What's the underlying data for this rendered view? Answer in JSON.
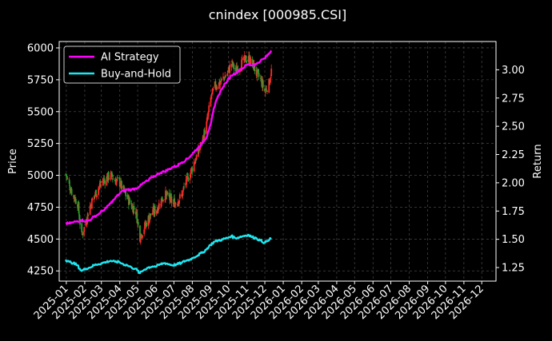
{
  "chart_data": {
    "type": "line",
    "title": "cnindex [000985.CSI]",
    "xlabel": "",
    "ylabel": "Price",
    "y2label": "Return",
    "background": "#000000",
    "grid": true,
    "legend_position": "top-left",
    "x_ticks": [
      "2025-01",
      "2025-02",
      "2025-03",
      "2025-04",
      "2025-05",
      "2025-06",
      "2025-07",
      "2025-08",
      "2025-09",
      "2025-10",
      "2025-11",
      "2025-12",
      "2026-01",
      "2026-02",
      "2026-03",
      "2026-04",
      "2026-05",
      "2026-06",
      "2026-07",
      "2026-08",
      "2026-09",
      "2026-10",
      "2026-11",
      "2026-12"
    ],
    "y_left": {
      "ticks": [
        4250,
        4500,
        4750,
        5000,
        5250,
        5500,
        5750,
        6000
      ],
      "lim": [
        4170,
        6050
      ]
    },
    "y_right": {
      "ticks": [
        1.25,
        1.5,
        1.75,
        2.0,
        2.25,
        2.5,
        2.75,
        3.0
      ],
      "lim": [
        1.13,
        3.25
      ]
    },
    "x_range": [
      "2024-12-20",
      "2026-12-25"
    ],
    "candle_colors": {
      "up": "#ff2a2a",
      "down": "#2e9e2e"
    },
    "price_path": [
      [
        "2024-12-31",
        5010
      ],
      [
        "2025-01-06",
        4920
      ],
      [
        "2025-01-13",
        4840
      ],
      [
        "2025-01-20",
        4780
      ],
      [
        "2025-01-27",
        4520
      ],
      [
        "2025-02-03",
        4640
      ],
      [
        "2025-02-10",
        4760
      ],
      [
        "2025-02-17",
        4840
      ],
      [
        "2025-02-24",
        4900
      ],
      [
        "2025-03-03",
        4950
      ],
      [
        "2025-03-10",
        4980
      ],
      [
        "2025-03-17",
        5000
      ],
      [
        "2025-03-24",
        4960
      ],
      [
        "2025-03-31",
        4950
      ],
      [
        "2025-04-07",
        4880
      ],
      [
        "2025-04-14",
        4820
      ],
      [
        "2025-04-21",
        4760
      ],
      [
        "2025-04-28",
        4720
      ],
      [
        "2025-05-05",
        4520
      ],
      [
        "2025-05-12",
        4590
      ],
      [
        "2025-05-19",
        4660
      ],
      [
        "2025-05-26",
        4710
      ],
      [
        "2025-06-02",
        4730
      ],
      [
        "2025-06-09",
        4800
      ],
      [
        "2025-06-16",
        4850
      ],
      [
        "2025-06-23",
        4820
      ],
      [
        "2025-06-30",
        4780
      ],
      [
        "2025-07-07",
        4800
      ],
      [
        "2025-07-14",
        4840
      ],
      [
        "2025-07-21",
        4950
      ],
      [
        "2025-07-28",
        5010
      ],
      [
        "2025-08-04",
        5100
      ],
      [
        "2025-08-11",
        5180
      ],
      [
        "2025-08-18",
        5280
      ],
      [
        "2025-08-25",
        5400
      ],
      [
        "2025-09-01",
        5600
      ],
      [
        "2025-09-08",
        5700
      ],
      [
        "2025-09-15",
        5720
      ],
      [
        "2025-09-22",
        5760
      ],
      [
        "2025-09-29",
        5800
      ],
      [
        "2025-10-06",
        5880
      ],
      [
        "2025-10-13",
        5820
      ],
      [
        "2025-10-20",
        5860
      ],
      [
        "2025-10-27",
        5900
      ],
      [
        "2025-11-03",
        5920
      ],
      [
        "2025-11-10",
        5880
      ],
      [
        "2025-11-17",
        5800
      ],
      [
        "2025-11-24",
        5750
      ],
      [
        "2025-12-01",
        5660
      ],
      [
        "2025-12-08",
        5720
      ],
      [
        "2025-12-12",
        5820
      ]
    ],
    "series": [
      {
        "name": "AI Strategy",
        "axis": "right",
        "color": "#ff00ff",
        "points": [
          [
            "2024-12-31",
            1.64
          ],
          [
            "2025-01-06",
            1.64
          ],
          [
            "2025-01-13",
            1.65
          ],
          [
            "2025-01-20",
            1.66
          ],
          [
            "2025-01-27",
            1.67
          ],
          [
            "2025-02-03",
            1.66
          ],
          [
            "2025-02-10",
            1.67
          ],
          [
            "2025-02-17",
            1.7
          ],
          [
            "2025-02-24",
            1.72
          ],
          [
            "2025-03-03",
            1.75
          ],
          [
            "2025-03-10",
            1.78
          ],
          [
            "2025-03-17",
            1.82
          ],
          [
            "2025-03-24",
            1.86
          ],
          [
            "2025-03-31",
            1.9
          ],
          [
            "2025-04-07",
            1.93
          ],
          [
            "2025-04-14",
            1.94
          ],
          [
            "2025-04-21",
            1.94
          ],
          [
            "2025-04-28",
            1.95
          ],
          [
            "2025-05-05",
            1.97
          ],
          [
            "2025-05-12",
            2.0
          ],
          [
            "2025-05-19",
            2.02
          ],
          [
            "2025-05-26",
            2.05
          ],
          [
            "2025-06-02",
            2.07
          ],
          [
            "2025-06-09",
            2.09
          ],
          [
            "2025-06-16",
            2.1
          ],
          [
            "2025-06-23",
            2.12
          ],
          [
            "2025-06-30",
            2.14
          ],
          [
            "2025-07-07",
            2.15
          ],
          [
            "2025-07-14",
            2.18
          ],
          [
            "2025-07-21",
            2.2
          ],
          [
            "2025-07-28",
            2.23
          ],
          [
            "2025-08-04",
            2.27
          ],
          [
            "2025-08-11",
            2.31
          ],
          [
            "2025-08-18",
            2.35
          ],
          [
            "2025-08-25",
            2.4
          ],
          [
            "2025-09-01",
            2.52
          ],
          [
            "2025-09-08",
            2.68
          ],
          [
            "2025-09-15",
            2.78
          ],
          [
            "2025-09-22",
            2.85
          ],
          [
            "2025-09-29",
            2.9
          ],
          [
            "2025-10-06",
            2.95
          ],
          [
            "2025-10-13",
            2.97
          ],
          [
            "2025-10-20",
            3.0
          ],
          [
            "2025-10-27",
            3.02
          ],
          [
            "2025-11-03",
            3.05
          ],
          [
            "2025-11-10",
            3.04
          ],
          [
            "2025-11-17",
            3.05
          ],
          [
            "2025-11-24",
            3.08
          ],
          [
            "2025-12-01",
            3.1
          ],
          [
            "2025-12-08",
            3.14
          ],
          [
            "2025-12-12",
            3.17
          ]
        ]
      },
      {
        "name": "Buy-and-Hold",
        "axis": "right",
        "color": "#1ee6f0",
        "points": [
          [
            "2024-12-31",
            1.32
          ],
          [
            "2025-01-06",
            1.3
          ],
          [
            "2025-01-13",
            1.29
          ],
          [
            "2025-01-20",
            1.27
          ],
          [
            "2025-01-27",
            1.22
          ],
          [
            "2025-02-03",
            1.24
          ],
          [
            "2025-02-10",
            1.25
          ],
          [
            "2025-02-17",
            1.27
          ],
          [
            "2025-02-24",
            1.28
          ],
          [
            "2025-03-03",
            1.29
          ],
          [
            "2025-03-10",
            1.3
          ],
          [
            "2025-03-17",
            1.31
          ],
          [
            "2025-03-24",
            1.3
          ],
          [
            "2025-03-31",
            1.3
          ],
          [
            "2025-04-07",
            1.28
          ],
          [
            "2025-04-14",
            1.27
          ],
          [
            "2025-04-21",
            1.25
          ],
          [
            "2025-04-28",
            1.24
          ],
          [
            "2025-05-05",
            1.2
          ],
          [
            "2025-05-12",
            1.23
          ],
          [
            "2025-05-19",
            1.25
          ],
          [
            "2025-05-26",
            1.26
          ],
          [
            "2025-06-02",
            1.26
          ],
          [
            "2025-06-09",
            1.28
          ],
          [
            "2025-06-16",
            1.29
          ],
          [
            "2025-06-23",
            1.28
          ],
          [
            "2025-06-30",
            1.27
          ],
          [
            "2025-07-07",
            1.28
          ],
          [
            "2025-07-14",
            1.29
          ],
          [
            "2025-07-21",
            1.31
          ],
          [
            "2025-07-28",
            1.32
          ],
          [
            "2025-08-04",
            1.34
          ],
          [
            "2025-08-11",
            1.36
          ],
          [
            "2025-08-18",
            1.38
          ],
          [
            "2025-08-25",
            1.41
          ],
          [
            "2025-09-01",
            1.45
          ],
          [
            "2025-09-08",
            1.48
          ],
          [
            "2025-09-15",
            1.49
          ],
          [
            "2025-09-22",
            1.5
          ],
          [
            "2025-09-29",
            1.51
          ],
          [
            "2025-10-06",
            1.53
          ],
          [
            "2025-10-13",
            1.51
          ],
          [
            "2025-10-20",
            1.52
          ],
          [
            "2025-10-27",
            1.53
          ],
          [
            "2025-11-03",
            1.54
          ],
          [
            "2025-11-10",
            1.52
          ],
          [
            "2025-11-17",
            1.51
          ],
          [
            "2025-11-24",
            1.49
          ],
          [
            "2025-12-01",
            1.47
          ],
          [
            "2025-12-08",
            1.49
          ],
          [
            "2025-12-12",
            1.51
          ]
        ]
      }
    ]
  }
}
